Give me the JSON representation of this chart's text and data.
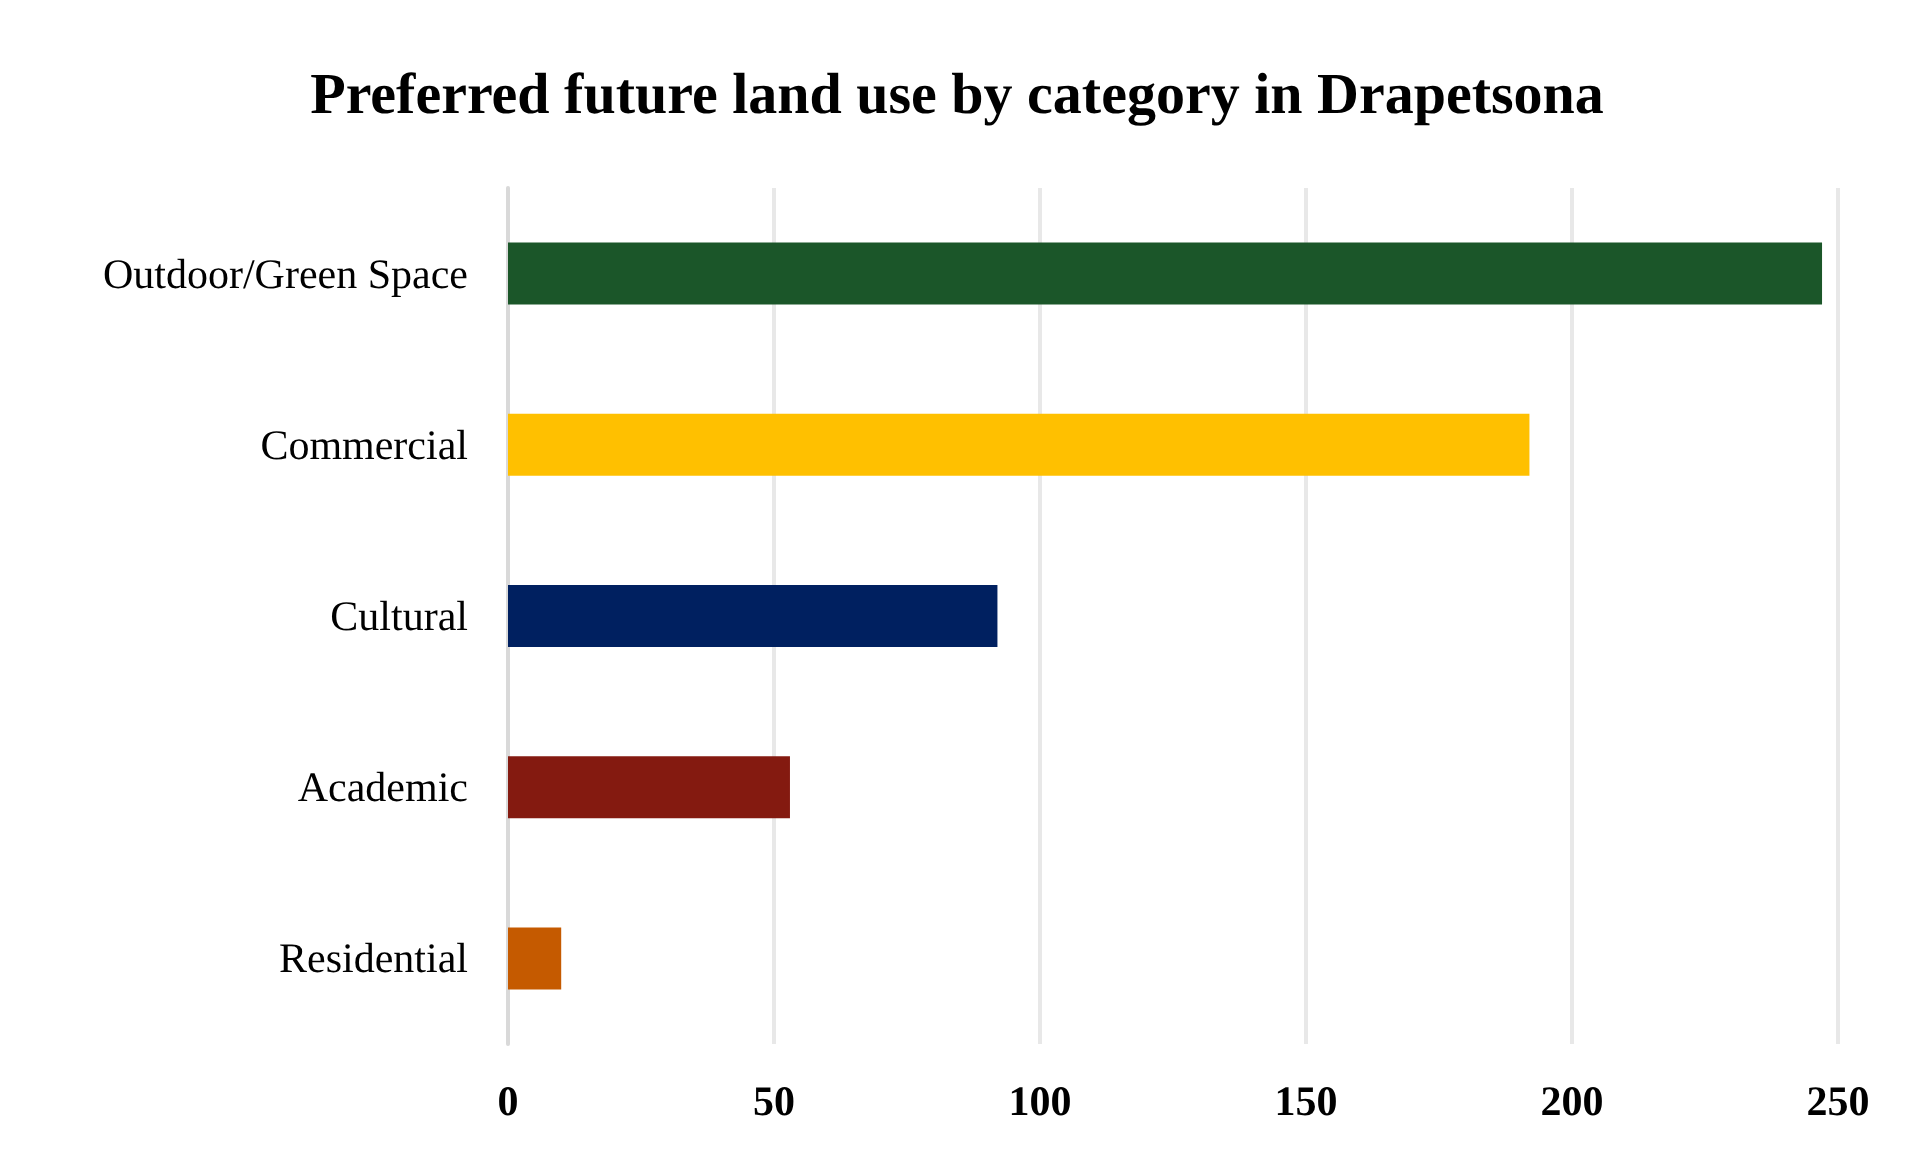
{
  "chart_data": {
    "type": "bar",
    "orientation": "horizontal",
    "title": "Preferred future land use by category in Drapetsona",
    "categories": [
      "Outdoor/Green Space",
      "Commercial",
      "Cultural",
      "Academic",
      "Residential"
    ],
    "values": [
      247,
      192,
      92,
      53,
      10
    ],
    "colors": [
      "#1b5629",
      "#ffc000",
      "#002060",
      "#841a10",
      "#c55a00"
    ],
    "xlim": [
      0,
      250
    ],
    "xticks": [
      0,
      50,
      100,
      150,
      200,
      250
    ],
    "grid": "x"
  }
}
